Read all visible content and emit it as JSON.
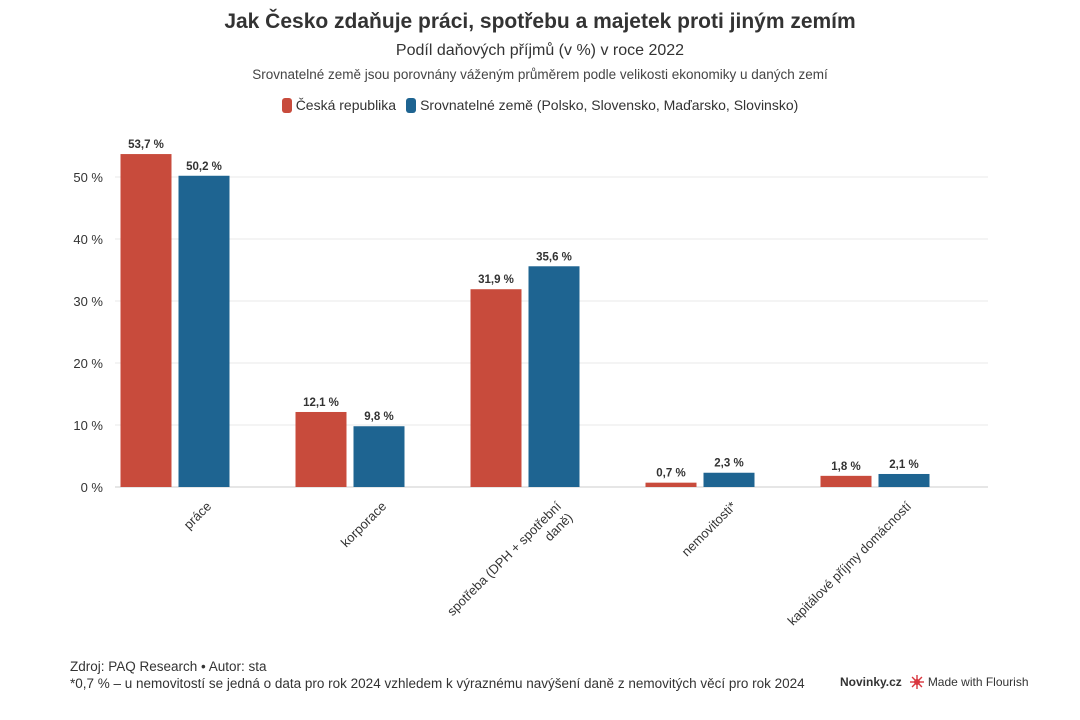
{
  "title": "Jak Česko zdaňuje práci, spotřebu a majetek proti jiným zemím",
  "subtitle": "Podíl daňových příjmů (v %) v roce 2022",
  "note": "Srovnatelné země jsou porovnány váženým průměrem podle velikosti ekonomiky u daných zemí",
  "legend": {
    "cz": "Česká republika",
    "comp": "Srovnatelné země (Polsko, Slovensko, Maďarsko, Slovinsko)"
  },
  "colors": {
    "cz": "#c84b3c",
    "comp": "#1e6491",
    "grid": "#e8e8e8",
    "text": "#333333"
  },
  "chart_data": {
    "type": "bar",
    "title": "Jak Česko zdaňuje práci, spotřebu a majetek proti jiným zemím",
    "subtitle": "Podíl daňových příjmů (v %) v roce 2022",
    "categories": [
      "práce",
      "korporace",
      "spotřeba (DPH + spotřební daně)",
      "nemovitosti*",
      "kapitálové příjmy domácností"
    ],
    "category_lines": [
      [
        "práce"
      ],
      [
        "korporace"
      ],
      [
        "spotřeba (DPH + spotřební",
        "daně)"
      ],
      [
        "nemovitosti*"
      ],
      [
        "kapitálové příjmy domácností"
      ]
    ],
    "series": [
      {
        "name": "Česká republika",
        "values": [
          53.7,
          12.1,
          31.9,
          0.7,
          1.8
        ],
        "labels": [
          "53,7 %",
          "12,1 %",
          "31,9 %",
          "0,7 %",
          "1,8 %"
        ]
      },
      {
        "name": "Srovnatelné země (Polsko, Slovensko, Maďarsko, Slovinsko)",
        "values": [
          50.2,
          9.8,
          35.6,
          2.3,
          2.1
        ],
        "labels": [
          "50,2 %",
          "9,8 %",
          "35,6 %",
          "2,3 %",
          "2,1 %"
        ]
      }
    ],
    "yticks": [
      0,
      10,
      20,
      30,
      40,
      50
    ],
    "ytick_labels": [
      "0 %",
      "10 %",
      "20 %",
      "30 %",
      "40 %",
      "50 %"
    ],
    "ylim": [
      0,
      55
    ],
    "grid": true,
    "legend_position": "top-center"
  },
  "footer": {
    "source": "Zdroj: PAQ Research • Autor: sta",
    "footnote": "*0,7 % – u nemovitostí se jedná o data pro rok 2024 vzhledem k výraznému navýšení daně z nemovitých věcí pro rok 2024"
  },
  "brand": {
    "novinky": "Novinky.cz",
    "flourish": "Made with Flourish"
  }
}
